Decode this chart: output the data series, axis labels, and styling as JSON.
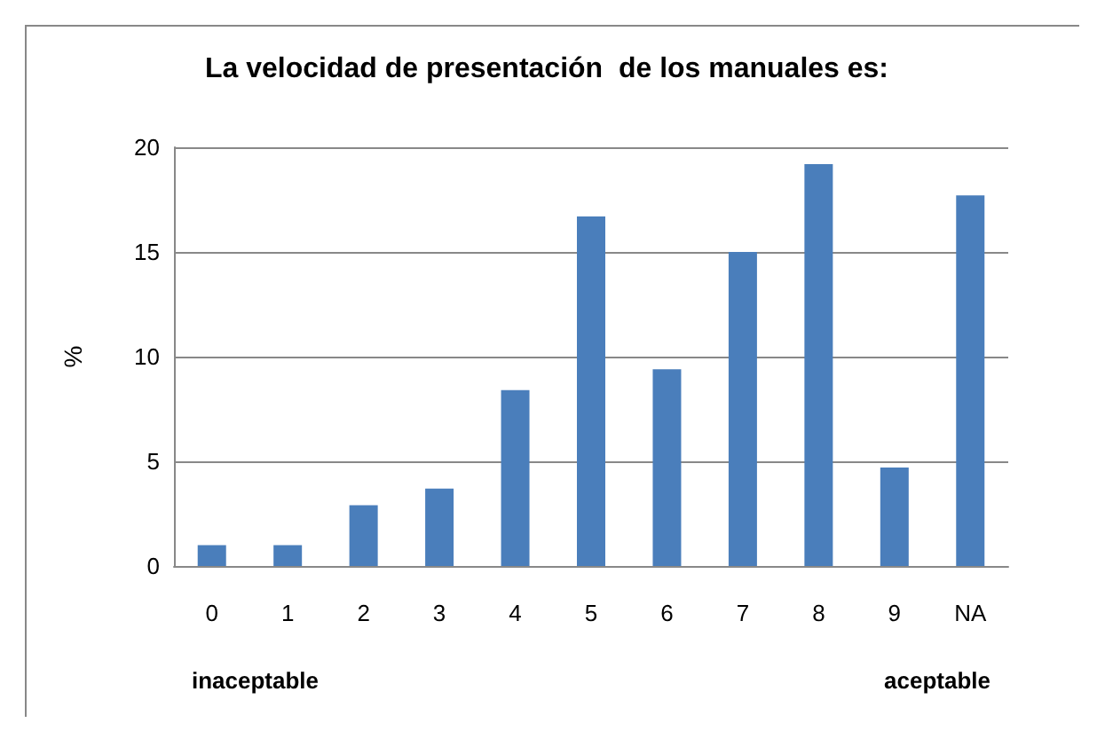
{
  "chart_data": {
    "type": "bar",
    "title": "La velocidad de presentación  de los manuales es:",
    "ylabel": "%",
    "categories": [
      "0",
      "1",
      "2",
      "3",
      "4",
      "5",
      "6",
      "7",
      "8",
      "9",
      "NA"
    ],
    "values": [
      1.0,
      1.0,
      2.9,
      3.7,
      8.4,
      16.7,
      9.4,
      15.0,
      19.2,
      4.7,
      17.7
    ],
    "color": "#4a7ebb",
    "ylim": [
      0,
      20
    ],
    "yticks": [
      0,
      5,
      10,
      15,
      20
    ],
    "grid": "y",
    "annotations": [
      "inaceptable",
      "aceptable"
    ]
  }
}
